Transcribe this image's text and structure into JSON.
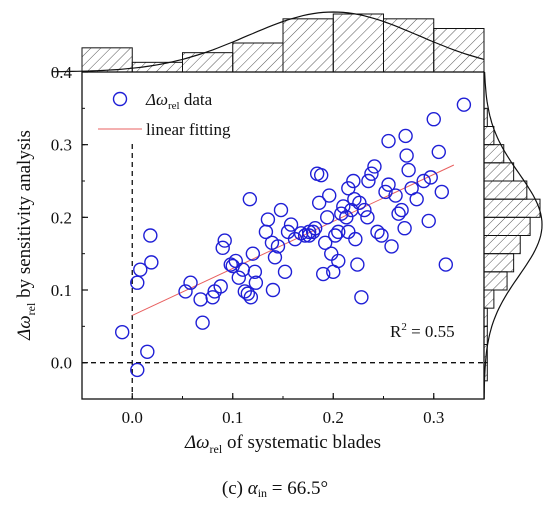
{
  "chart_data": {
    "type": "scatter",
    "xlabel": {
      "symbol": "Δω",
      "sub": "rel",
      "text": " of systematic blades"
    },
    "ylabel": {
      "symbol": "Δω",
      "sub": "rel",
      "text": " by sensitivity analysis"
    },
    "xlim": [
      -0.05,
      0.35
    ],
    "ylim": [
      -0.05,
      0.4
    ],
    "xticks": [
      "0.0",
      "0.1",
      "0.2",
      "0.3"
    ],
    "xtick_values": [
      0.0,
      0.1,
      0.2,
      0.3
    ],
    "yticks": [
      "0.0",
      "0.1",
      "0.2",
      "0.3",
      "0.4"
    ],
    "ytick_values": [
      0.0,
      0.1,
      0.2,
      0.3,
      0.4
    ],
    "grid": false,
    "legend": {
      "placement": "top-left",
      "entries": [
        {
          "symbol": "Δω",
          "sub": "rel",
          "text": " data",
          "marker": "circle"
        },
        {
          "text": "linear fitting",
          "marker": "line"
        }
      ]
    },
    "annotation": {
      "prefix": "R",
      "sup": "2",
      "text": " = 0.55"
    },
    "reference_lines": {
      "x": 0.0,
      "y": 0.0
    },
    "fit_line": {
      "x": [
        0.0,
        0.32
      ],
      "y": [
        0.065,
        0.272
      ]
    },
    "series": [
      {
        "x": [
          -0.01,
          0.005,
          0.015,
          0.005,
          0.008,
          0.019,
          0.018,
          0.053,
          0.058,
          0.068,
          0.07,
          0.08,
          0.082,
          0.088,
          0.09,
          0.092,
          0.1,
          0.103,
          0.106,
          0.11,
          0.112,
          0.115,
          0.117,
          0.118,
          0.12,
          0.122,
          0.133,
          0.135,
          0.14,
          0.142,
          0.145,
          0.148,
          0.152,
          0.155,
          0.158,
          0.162,
          0.168,
          0.172,
          0.176,
          0.18,
          0.182,
          0.184,
          0.186,
          0.188,
          0.19,
          0.192,
          0.194,
          0.196,
          0.198,
          0.2,
          0.202,
          0.205,
          0.208,
          0.21,
          0.213,
          0.215,
          0.218,
          0.22,
          0.222,
          0.224,
          0.226,
          0.228,
          0.231,
          0.234,
          0.238,
          0.241,
          0.244,
          0.248,
          0.252,
          0.255,
          0.258,
          0.262,
          0.265,
          0.268,
          0.271,
          0.273,
          0.275,
          0.278,
          0.283,
          0.29,
          0.295,
          0.297,
          0.3,
          0.305,
          0.308,
          0.312,
          0.33,
          0.255,
          0.235,
          0.205,
          0.215,
          0.098,
          0.123,
          0.139,
          0.176,
          0.272,
          0.221
        ],
        "y": [
          0.042,
          -0.01,
          0.015,
          0.11,
          0.128,
          0.138,
          0.175,
          0.098,
          0.11,
          0.087,
          0.055,
          0.09,
          0.098,
          0.105,
          0.158,
          0.168,
          0.133,
          0.14,
          0.117,
          0.128,
          0.098,
          0.095,
          0.225,
          0.09,
          0.15,
          0.125,
          0.18,
          0.197,
          0.1,
          0.145,
          0.16,
          0.21,
          0.125,
          0.18,
          0.19,
          0.17,
          0.178,
          0.175,
          0.18,
          0.18,
          0.185,
          0.26,
          0.22,
          0.258,
          0.122,
          0.165,
          0.2,
          0.23,
          0.15,
          0.125,
          0.175,
          0.14,
          0.205,
          0.215,
          0.2,
          0.18,
          0.21,
          0.25,
          0.17,
          0.135,
          0.22,
          0.09,
          0.21,
          0.2,
          0.26,
          0.27,
          0.18,
          0.175,
          0.235,
          0.245,
          0.16,
          0.23,
          0.205,
          0.21,
          0.185,
          0.285,
          0.265,
          0.24,
          0.225,
          0.25,
          0.195,
          0.255,
          0.335,
          0.29,
          0.235,
          0.135,
          0.355,
          0.305,
          0.25,
          0.18,
          0.24,
          0.135,
          0.11,
          0.165,
          0.175,
          0.312,
          0.225
        ]
      }
    ],
    "histogram_x": {
      "bins": [
        -0.05,
        0.0,
        0.05,
        0.1,
        0.15,
        0.2,
        0.25,
        0.3,
        0.35
      ],
      "counts": [
        5,
        2,
        4,
        6,
        11,
        12,
        11,
        9
      ]
    },
    "histogram_y": {
      "bins": [
        -0.025,
        0.0,
        0.025,
        0.05,
        0.075,
        0.1,
        0.125,
        0.15,
        0.175,
        0.2,
        0.225,
        0.25,
        0.275,
        0.3,
        0.325,
        0.35
      ],
      "counts": [
        1,
        1,
        1,
        1,
        3,
        7,
        9,
        11,
        14,
        17,
        13,
        9,
        6,
        3,
        1
      ]
    },
    "colors": {
      "marker": "#1f1fd6",
      "fit": "#e86060",
      "axis": "#111111"
    }
  },
  "caption": {
    "label": "(c) ",
    "symbol": "α",
    "sub": "in",
    "text": " = 66.5°"
  }
}
